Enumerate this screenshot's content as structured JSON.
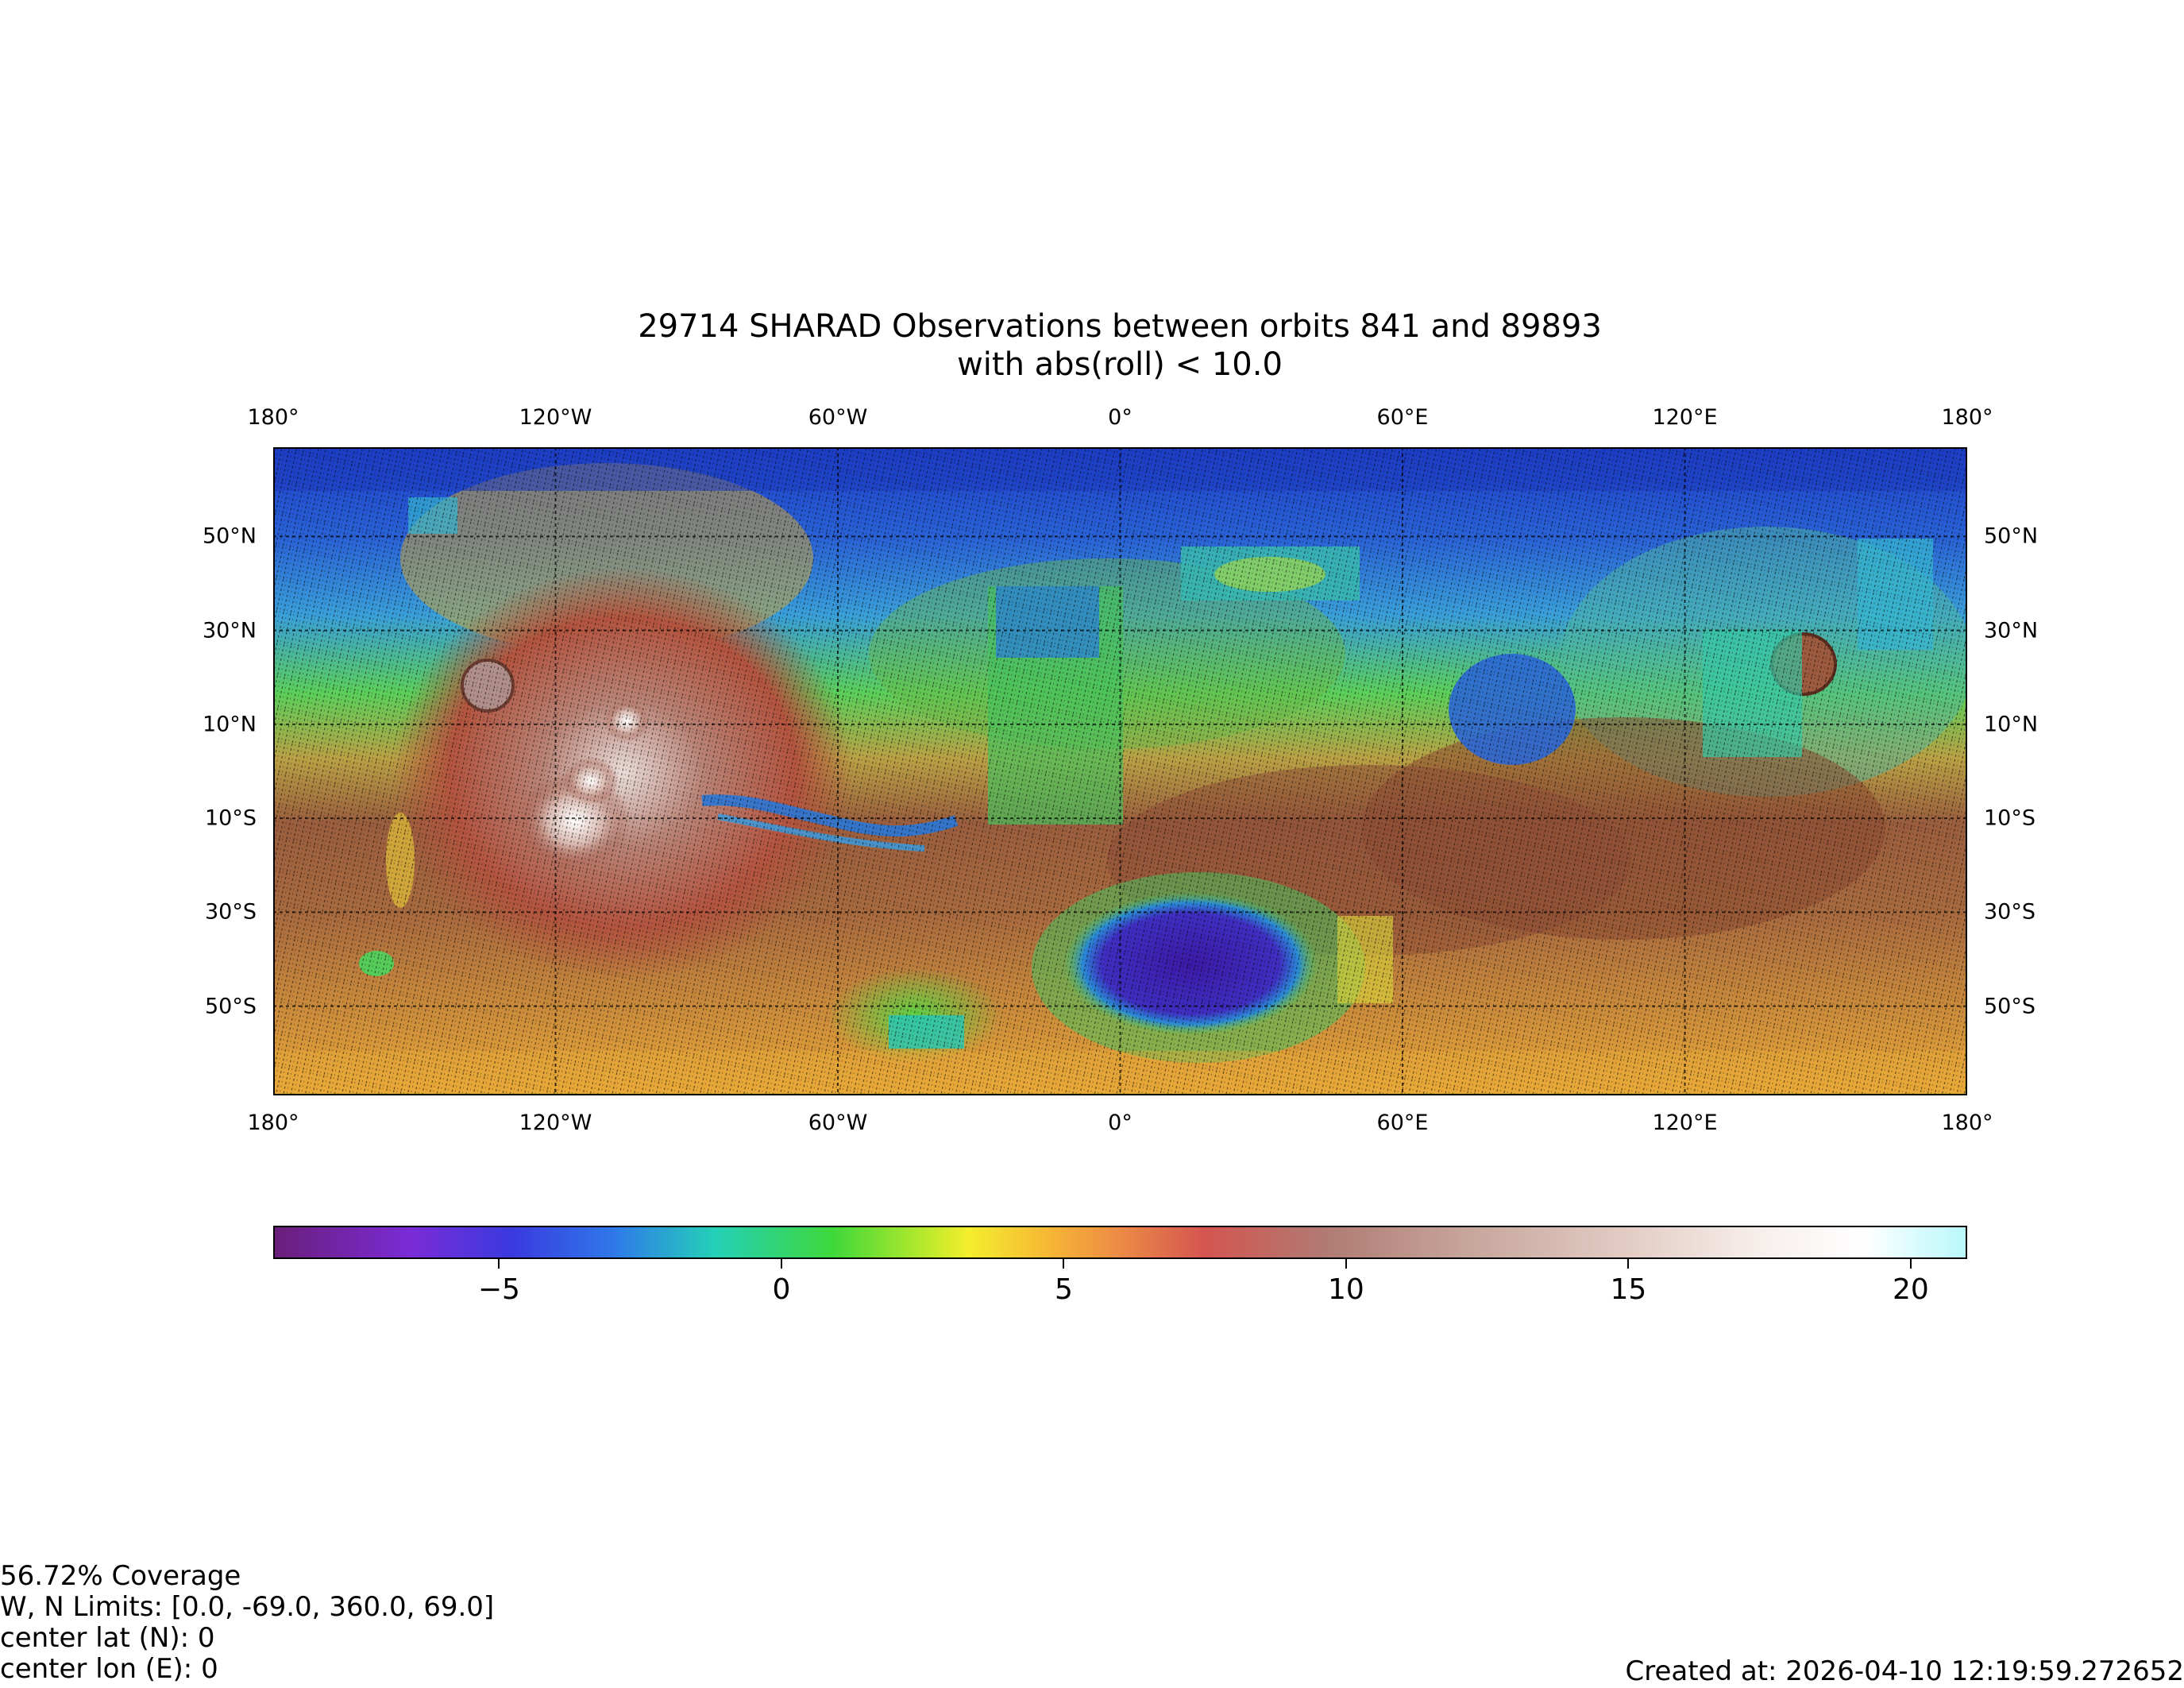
{
  "title": {
    "line1": "29714 SHARAD Observations between orbits 841 and 89893",
    "line2": "with abs(roll) < 10.0"
  },
  "map": {
    "lon_ticks": [
      "180°",
      "120°W",
      "60°W",
      "0°",
      "60°E",
      "120°E",
      "180°"
    ],
    "lat_ticks": [
      "50°N",
      "30°N",
      "10°N",
      "10°S",
      "30°S",
      "50°S"
    ],
    "lon_values": [
      -180,
      -120,
      -60,
      0,
      60,
      120,
      180
    ],
    "lat_values": [
      50,
      30,
      10,
      -10,
      -30,
      -50
    ],
    "lon_range": [
      -180,
      180
    ],
    "lat_range": [
      -69,
      69
    ],
    "grid": true
  },
  "colorbar": {
    "range": [
      -9,
      21
    ],
    "ticks": [
      "−5",
      "0",
      "5",
      "10",
      "15",
      "20"
    ],
    "tick_values": [
      -5,
      0,
      5,
      10,
      15,
      20
    ]
  },
  "info": {
    "coverage": "56.72% Coverage",
    "limits": "W, N Limits:  [0.0, -69.0, 360.0, 69.0]",
    "center_lat": "center lat (N): 0",
    "center_lon": "center lon (E): 0"
  },
  "created_at": "Created at: 2026-04-10 12:19:59.272652"
}
